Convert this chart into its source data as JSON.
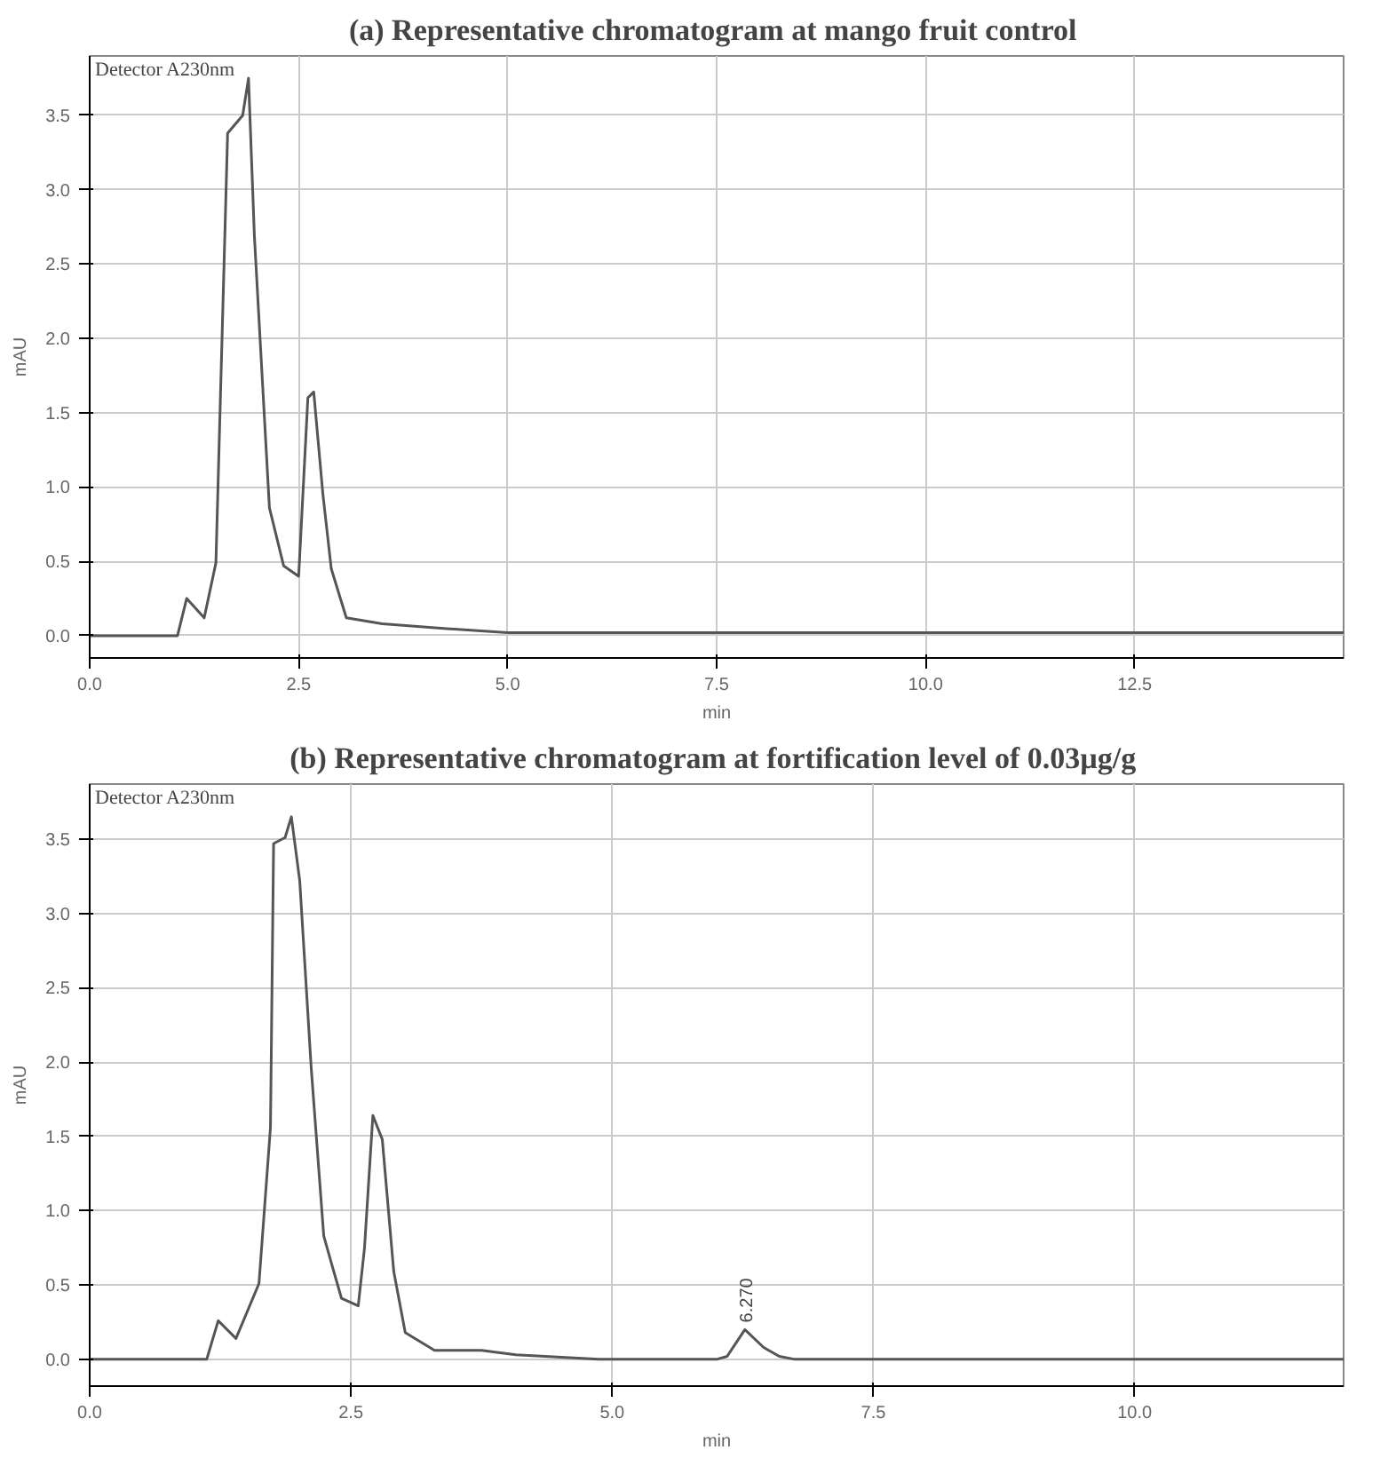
{
  "chart_data": [
    {
      "type": "line",
      "title": "(a)  Representative chromatogram at mango fruit control",
      "xlabel": "min",
      "ylabel": "mAU",
      "annotations": [
        "Detector A230nm"
      ],
      "x": [
        0,
        1.05,
        1.16,
        1.37,
        1.51,
        1.65,
        1.83,
        1.9,
        1.97,
        2.15,
        2.32,
        2.5,
        2.61,
        2.68,
        2.79,
        2.89,
        3.07,
        3.5,
        4.2,
        5.0,
        8.0,
        12.0,
        15.0
      ],
      "series": [
        {
          "color": "#555555",
          "values": [
            0,
            0,
            0.25,
            0.12,
            0.49,
            3.38,
            3.5,
            3.75,
            2.69,
            0.86,
            0.47,
            0.4,
            1.6,
            1.64,
            0.95,
            0.45,
            0.12,
            0.08,
            0.05,
            0.02,
            0.02,
            0.02,
            0.02
          ]
        }
      ],
      "xlim": [
        0,
        15
      ],
      "ylim": [
        -0.15,
        3.9
      ],
      "xticks": [
        {
          "value": 0,
          "label": "0.0"
        },
        2.5,
        {
          "value": 5,
          "label": "5.0"
        },
        7.5,
        {
          "value": 10,
          "label": "10.0"
        },
        12.5
      ],
      "yticks": [
        {
          "value": 0,
          "label": "0.0"
        },
        0.5,
        {
          "value": 1,
          "label": "1.0"
        },
        1.5,
        {
          "value": 2,
          "label": "2.0"
        },
        2.5,
        {
          "value": 3,
          "label": "3.0"
        },
        3.5
      ],
      "grid": true,
      "marker": "none",
      "line_style": "solid"
    },
    {
      "type": "line",
      "title": "(b)  Representative chromatogram at fortification level of 0.03µg/g",
      "xlabel": "min",
      "ylabel": "mAU",
      "annotations": [
        "Detector A230nm",
        {
          "text": "6.270",
          "x": 6.27,
          "y": 0.2
        }
      ],
      "x": [
        0,
        1.12,
        1.23,
        1.4,
        1.62,
        1.73,
        1.76,
        1.87,
        1.93,
        2.01,
        2.12,
        2.24,
        2.32,
        2.41,
        2.57,
        2.63,
        2.71,
        2.8,
        2.91,
        3.02,
        3.3,
        3.75,
        4.08,
        4.87,
        6.0,
        6.1,
        6.27,
        6.45,
        6.6,
        6.75,
        8.0,
        12.0
      ],
      "series": [
        {
          "color": "#555555",
          "values": [
            0,
            0,
            0.26,
            0.14,
            0.51,
            1.56,
            3.47,
            3.51,
            3.65,
            3.22,
            1.96,
            0.83,
            0.63,
            0.41,
            0.36,
            0.75,
            1.64,
            1.48,
            0.59,
            0.18,
            0.06,
            0.06,
            0.03,
            0,
            0,
            0.02,
            0.2,
            0.08,
            0.02,
            0,
            0,
            0
          ]
        }
      ],
      "xlim": [
        0,
        12
      ],
      "ylim": [
        -0.18,
        3.87
      ],
      "xticks": [
        {
          "value": 0,
          "label": "0.0"
        },
        2.5,
        {
          "value": 5,
          "label": "5.0"
        },
        7.5,
        {
          "value": 10,
          "label": "10.0"
        }
      ],
      "yticks": [
        {
          "value": 0,
          "label": "0.0"
        },
        0.5,
        {
          "value": 1,
          "label": "1.0"
        },
        1.5,
        {
          "value": 2,
          "label": "2.0"
        },
        2.5,
        {
          "value": 3,
          "label": "3.0"
        },
        3.5
      ],
      "grid": true,
      "marker": "none",
      "line_style": "solid"
    }
  ]
}
